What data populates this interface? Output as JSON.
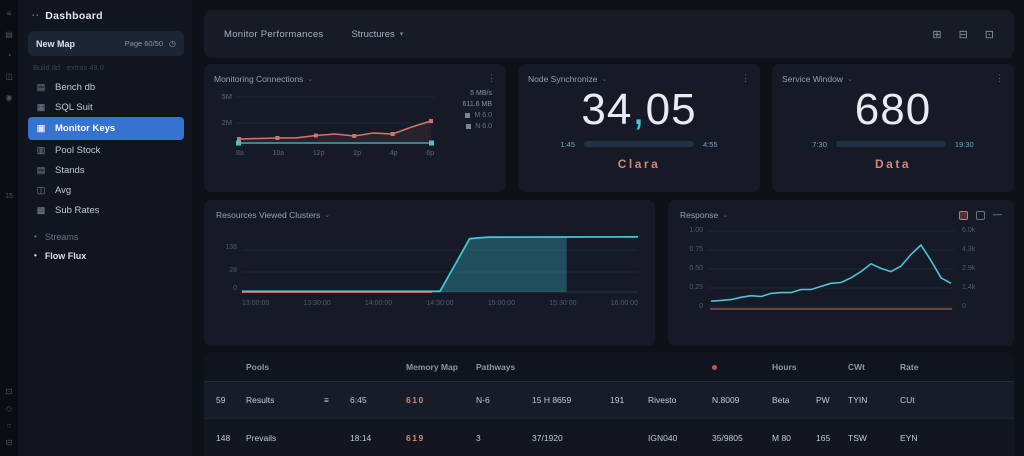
{
  "colors": {
    "accent_teal": "#3ec6da",
    "accent_salmon": "#d0756b",
    "accent_blue_selected": "#3672cf",
    "panel_bg": "#151a26",
    "page_bg": "#0d1118",
    "muted_text": "#5d6675",
    "status_dot": "#c0564e"
  },
  "rail": {
    "top_icons": [
      "≡",
      "▤",
      "◔",
      "◫",
      "◉"
    ],
    "badge": "15",
    "bottom_icons": [
      "⊡",
      "◇",
      "○",
      "⊟"
    ]
  },
  "sidebar": {
    "header": {
      "dots": "▪▪",
      "title": "Dashboard"
    },
    "quickbox": {
      "left": "New Map",
      "right": "Page 60/50",
      "icon": "◷"
    },
    "build_note": "Build 8d · extras 49.0",
    "items": [
      {
        "glyph": "▤",
        "label": "Bench db"
      },
      {
        "glyph": "▦",
        "label": "SQL Suit"
      },
      {
        "glyph": "▣",
        "label": "Monitor Keys"
      },
      {
        "glyph": "▥",
        "label": "Pool Stock"
      },
      {
        "glyph": "▤",
        "label": "Stands"
      },
      {
        "glyph": "◫",
        "label": "Avg"
      },
      {
        "glyph": "▩",
        "label": "Sub Rates"
      }
    ],
    "sections": [
      {
        "bullet": "•",
        "label": "Streams"
      },
      {
        "bullet": "•",
        "label": "Flow Flux"
      }
    ]
  },
  "topbar": {
    "breadcrumb": "Monitor Performances",
    "selector": "Structures",
    "caret": "▾",
    "icons": [
      "⊞",
      "⊟",
      "⊡"
    ]
  },
  "panels": {
    "connections": {
      "title": "Monitoring Connections",
      "caret": "⌄",
      "kebab": "⋮"
    },
    "stat1": {
      "title": "Node Synchronize",
      "caret": "⌄",
      "kebab": "⋮",
      "value_int": "34",
      "value_sep": ",",
      "value_frac": "05",
      "gauge": {
        "left": "1:45",
        "right": "4:55",
        "percent": 55
      },
      "footer": "Clara"
    },
    "stat2": {
      "title": "Service Window",
      "caret": "⌄",
      "kebab": "⋮",
      "value": "680",
      "gauge": {
        "left": "7:30",
        "right": "19:30",
        "percent": 62
      },
      "footer": "Data"
    },
    "resources": {
      "title": "Resources Viewed Clusters",
      "caret": "⌄"
    },
    "response": {
      "title": "Response",
      "caret": "⌄",
      "minimize": "—"
    }
  },
  "chart_data": [
    {
      "id": "connections",
      "type": "line",
      "title": "Monitoring Connections",
      "ylim": [
        0,
        5
      ],
      "y_ticks": [
        "5M",
        "2M"
      ],
      "x_ticks": [
        "8a",
        "10a",
        "12p",
        "2p",
        "4p",
        "6p"
      ],
      "right_values": [
        "5 MB/s",
        "611.6 MB"
      ],
      "legend": [
        "M 6.0",
        "N 6.0"
      ],
      "series": [
        {
          "name": "throughput",
          "color": "#d0756b",
          "values": [
            0.5,
            0.55,
            0.6,
            0.62,
            0.85,
            1.0,
            0.8,
            1.1,
            1.0,
            1.7,
            2.3
          ]
        },
        {
          "name": "baseline",
          "color": "#3ec6da",
          "values": [
            0.15,
            0.15
          ]
        }
      ]
    },
    {
      "id": "resources",
      "type": "area",
      "title": "Resources Viewed Clusters",
      "ylim": [
        0,
        1
      ],
      "y_ticks": [
        "138",
        "28",
        "0"
      ],
      "x_ticks": [
        "13:00:00",
        "13:30:00",
        "14:00:00",
        "14:30:00",
        "15:00:00",
        "15:30:00",
        "16:00:00"
      ],
      "line": [
        [
          0,
          0.012
        ],
        [
          0.5,
          0.012
        ],
        [
          0.575,
          0.92
        ],
        [
          0.62,
          0.945
        ],
        [
          1,
          0.95
        ]
      ],
      "fill": [
        [
          0.5,
          0.0
        ],
        [
          0.575,
          0.92
        ],
        [
          0.62,
          0.945
        ],
        [
          0.82,
          0.95
        ],
        [
          0.82,
          0.0
        ]
      ],
      "red": [
        [
          0.0,
          0.008
        ],
        [
          0.48,
          0.008
        ]
      ],
      "line_color": "#3ec6da",
      "fill_color": "rgba(62,198,218,0.30)",
      "red_color": "#c96a5f"
    },
    {
      "id": "response",
      "type": "line",
      "title": "Response",
      "ylim": [
        0,
        1
      ],
      "y_left": [
        "1.00",
        "0.75",
        "0.50",
        "0.25",
        "0"
      ],
      "y_right": [
        "6.0k",
        "4.3k",
        "2.9k",
        "1.4k",
        "0"
      ],
      "series": [
        {
          "name": "latency",
          "color": "#4fc3d8",
          "values": [
            0.1,
            0.11,
            0.12,
            0.15,
            0.17,
            0.16,
            0.2,
            0.21,
            0.21,
            0.25,
            0.25,
            0.29,
            0.33,
            0.34,
            0.4,
            0.48,
            0.58,
            0.52,
            0.48,
            0.55,
            0.7,
            0.82,
            0.62,
            0.4,
            0.33
          ]
        },
        {
          "name": "baseline",
          "color": "#c96a5f",
          "values": [
            0.03,
            0.03
          ]
        }
      ]
    }
  ],
  "table": {
    "headers": [
      "",
      "Pools",
      "",
      "",
      "Memory Map",
      "Pathways",
      "",
      "",
      "",
      "",
      "Hours",
      "",
      "CWt",
      "Rate"
    ],
    "rows": [
      {
        "cells": [
          "59",
          "Results",
          "≡",
          "6:45",
          "610",
          "N-6",
          "15 H 8659",
          "191",
          "Rivesto",
          "N.8009",
          "Beta",
          "PW",
          "TYIN",
          "CUt"
        ]
      },
      {
        "cells": [
          "148",
          "Prevails",
          "",
          "18:14",
          "619",
          "3",
          "37/1920",
          "",
          "IGN040",
          "35/9805",
          "M 80",
          "165",
          "TSW",
          "EYN"
        ]
      }
    ]
  }
}
